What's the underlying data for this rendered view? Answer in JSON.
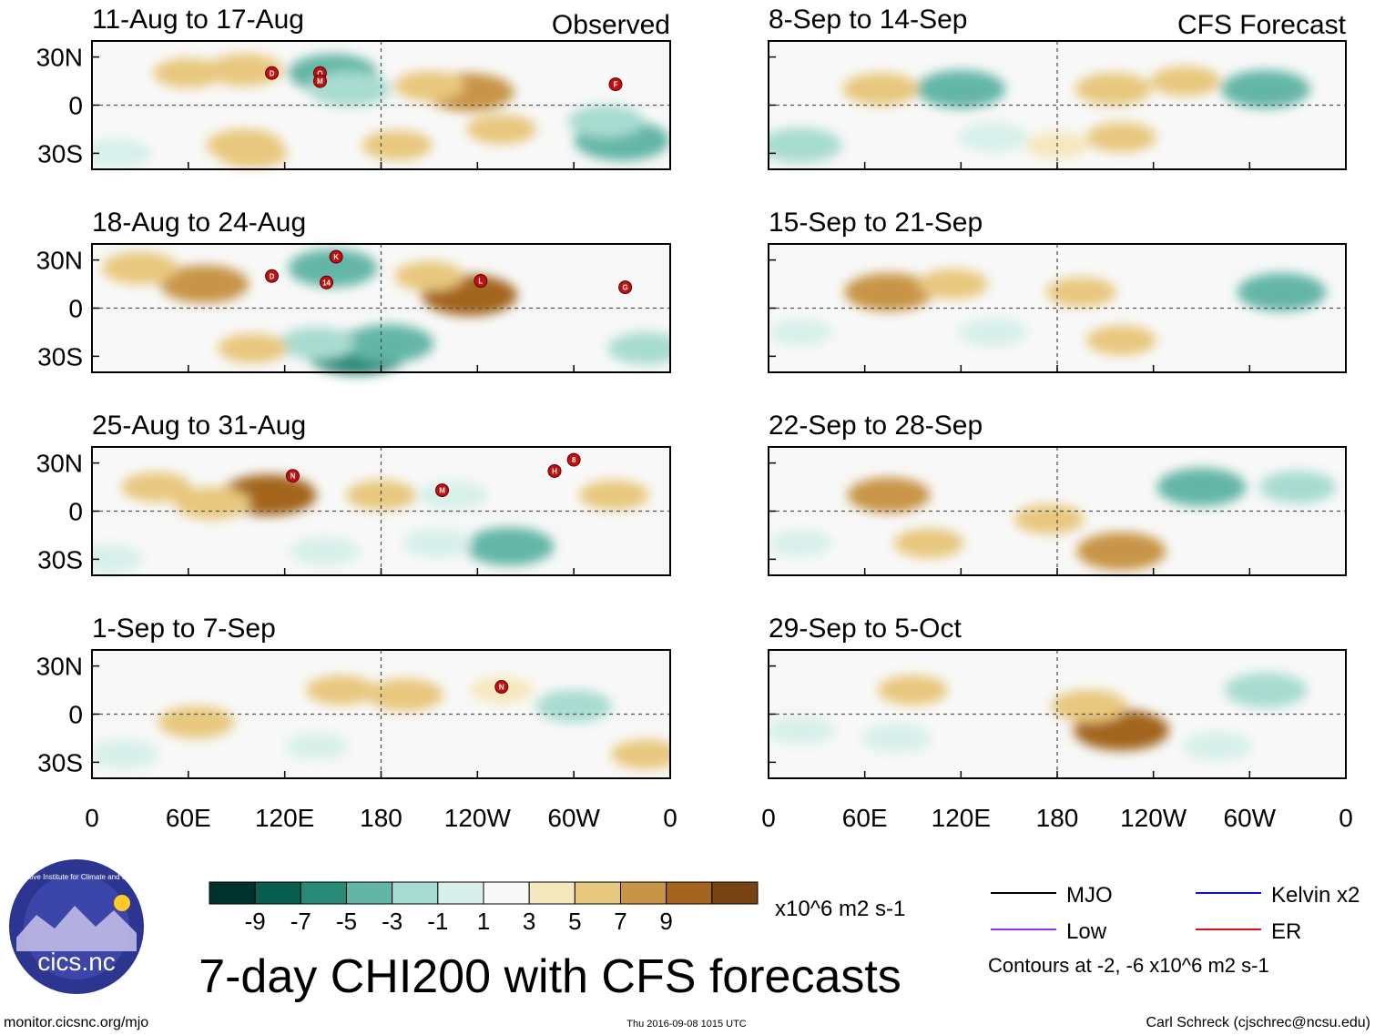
{
  "chart_data": {
    "type": "heatmap",
    "title": "7-day CHI200 with CFS forecasts",
    "observed_label": "Observed",
    "forecast_label": "CFS Forecast",
    "x_ticks": [
      "0",
      "60E",
      "120E",
      "180",
      "120W",
      "60W",
      "0"
    ],
    "x_values": [
      0,
      60,
      120,
      180,
      240,
      300,
      360
    ],
    "y_ticks": [
      "30N",
      "0",
      "30S"
    ],
    "y_values": [
      30,
      0,
      -30
    ],
    "ylim": [
      -40,
      40
    ],
    "xlim": [
      0,
      360
    ],
    "observed_panels": [
      {
        "period": "11-Aug to 17-Aug",
        "anomalies": [
          {
            "lon": 150,
            "lat": 20,
            "value": -6
          },
          {
            "lon": 160,
            "lat": 10,
            "value": -5
          },
          {
            "lon": 95,
            "lat": 22,
            "value": 4
          },
          {
            "lon": 60,
            "lat": 20,
            "value": 3
          },
          {
            "lon": 235,
            "lat": 8,
            "value": 6
          },
          {
            "lon": 210,
            "lat": 12,
            "value": 3
          },
          {
            "lon": 330,
            "lat": -22,
            "value": -7
          },
          {
            "lon": 320,
            "lat": -10,
            "value": -4
          },
          {
            "lon": 95,
            "lat": -25,
            "value": 4
          },
          {
            "lon": 100,
            "lat": -30,
            "value": 3
          },
          {
            "lon": 15,
            "lat": -30,
            "value": -3
          },
          {
            "lon": 190,
            "lat": -25,
            "value": 3
          },
          {
            "lon": 255,
            "lat": -15,
            "value": 3
          }
        ],
        "storms": [
          {
            "lon": 112,
            "lat": 20,
            "label": "D"
          },
          {
            "lon": 142,
            "lat": 20,
            "label": "O"
          },
          {
            "lon": 142,
            "lat": 15,
            "label": "M"
          },
          {
            "lon": 326,
            "lat": 13,
            "label": "F"
          }
        ]
      },
      {
        "period": "18-Aug to 24-Aug",
        "anomalies": [
          {
            "lon": 150,
            "lat": 25,
            "value": -6
          },
          {
            "lon": 165,
            "lat": -28,
            "value": -8
          },
          {
            "lon": 185,
            "lat": -22,
            "value": -6
          },
          {
            "lon": 140,
            "lat": -22,
            "value": -4
          },
          {
            "lon": 70,
            "lat": 15,
            "value": 6
          },
          {
            "lon": 30,
            "lat": 25,
            "value": 4
          },
          {
            "lon": 235,
            "lat": 8,
            "value": 7
          },
          {
            "lon": 210,
            "lat": 20,
            "value": 3
          },
          {
            "lon": 345,
            "lat": -25,
            "value": -4
          },
          {
            "lon": 100,
            "lat": -25,
            "value": 3
          }
        ],
        "storms": [
          {
            "lon": 112,
            "lat": 20,
            "label": "D"
          },
          {
            "lon": 152,
            "lat": 32,
            "label": "K"
          },
          {
            "lon": 146,
            "lat": 16,
            "label": "14"
          },
          {
            "lon": 242,
            "lat": 17,
            "label": "L"
          },
          {
            "lon": 332,
            "lat": 13,
            "label": "G"
          }
        ]
      },
      {
        "period": "25-Aug to 31-Aug",
        "anomalies": [
          {
            "lon": 110,
            "lat": 10,
            "value": 7
          },
          {
            "lon": 75,
            "lat": 5,
            "value": 4
          },
          {
            "lon": 40,
            "lat": 15,
            "value": 3
          },
          {
            "lon": 260,
            "lat": -22,
            "value": -6
          },
          {
            "lon": 225,
            "lat": 10,
            "value": -3
          },
          {
            "lon": 215,
            "lat": -20,
            "value": -3
          },
          {
            "lon": 145,
            "lat": -25,
            "value": -3
          },
          {
            "lon": 10,
            "lat": -30,
            "value": -3
          },
          {
            "lon": 180,
            "lat": 10,
            "value": 3
          },
          {
            "lon": 325,
            "lat": 10,
            "value": 3
          }
        ],
        "storms": [
          {
            "lon": 125,
            "lat": 22,
            "label": "N"
          },
          {
            "lon": 218,
            "lat": 13,
            "label": "M"
          },
          {
            "lon": 288,
            "lat": 25,
            "label": "H"
          },
          {
            "lon": 300,
            "lat": 32,
            "label": "8"
          }
        ]
      },
      {
        "period": "1-Sep to 7-Sep",
        "anomalies": [
          {
            "lon": 195,
            "lat": 12,
            "value": 4
          },
          {
            "lon": 155,
            "lat": 15,
            "value": 3
          },
          {
            "lon": 65,
            "lat": -5,
            "value": 4
          },
          {
            "lon": 300,
            "lat": 5,
            "value": -4
          },
          {
            "lon": 20,
            "lat": -25,
            "value": -3
          },
          {
            "lon": 140,
            "lat": -20,
            "value": -2
          },
          {
            "lon": 345,
            "lat": -25,
            "value": 3
          },
          {
            "lon": 255,
            "lat": 15,
            "value": 2
          }
        ],
        "storms": [
          {
            "lon": 255,
            "lat": 17,
            "label": "N"
          }
        ]
      }
    ],
    "forecast_panels": [
      {
        "period": "8-Sep to 14-Sep",
        "anomalies": [
          {
            "lon": 120,
            "lat": 10,
            "value": -6
          },
          {
            "lon": 140,
            "lat": -20,
            "value": -3
          },
          {
            "lon": 310,
            "lat": 10,
            "value": -6
          },
          {
            "lon": 20,
            "lat": -25,
            "value": -5
          },
          {
            "lon": 70,
            "lat": 10,
            "value": 4
          },
          {
            "lon": 215,
            "lat": 10,
            "value": 4
          },
          {
            "lon": 260,
            "lat": 15,
            "value": 3
          },
          {
            "lon": 220,
            "lat": -20,
            "value": 3
          },
          {
            "lon": 180,
            "lat": -25,
            "value": 2
          }
        ]
      },
      {
        "period": "15-Sep to 21-Sep",
        "anomalies": [
          {
            "lon": 75,
            "lat": 10,
            "value": 6
          },
          {
            "lon": 115,
            "lat": 15,
            "value": 3
          },
          {
            "lon": 320,
            "lat": 10,
            "value": -6
          },
          {
            "lon": 140,
            "lat": -15,
            "value": -3
          },
          {
            "lon": 220,
            "lat": -20,
            "value": 3
          },
          {
            "lon": 195,
            "lat": 10,
            "value": 3
          },
          {
            "lon": 20,
            "lat": -15,
            "value": -2
          }
        ]
      },
      {
        "period": "22-Sep to 28-Sep",
        "anomalies": [
          {
            "lon": 270,
            "lat": 15,
            "value": -6
          },
          {
            "lon": 330,
            "lat": 15,
            "value": -4
          },
          {
            "lon": 220,
            "lat": -25,
            "value": 6
          },
          {
            "lon": 175,
            "lat": -5,
            "value": 3
          },
          {
            "lon": 75,
            "lat": 10,
            "value": 5
          },
          {
            "lon": 20,
            "lat": -20,
            "value": -2
          },
          {
            "lon": 100,
            "lat": -20,
            "value": 3
          }
        ]
      },
      {
        "period": "29-Sep to 5-Oct",
        "anomalies": [
          {
            "lon": 220,
            "lat": -10,
            "value": 7
          },
          {
            "lon": 200,
            "lat": 5,
            "value": 4
          },
          {
            "lon": 90,
            "lat": 15,
            "value": 3
          },
          {
            "lon": 310,
            "lat": 15,
            "value": -5
          },
          {
            "lon": 80,
            "lat": -15,
            "value": -3
          },
          {
            "lon": 20,
            "lat": -10,
            "value": -3
          },
          {
            "lon": 280,
            "lat": -20,
            "value": -3
          }
        ]
      }
    ],
    "colorbar": {
      "ticks": [
        "-9",
        "-7",
        "-5",
        "-3",
        "-1",
        "1",
        "3",
        "5",
        "7",
        "9"
      ],
      "units": "x10^6 m2 s-1",
      "colors": [
        "#00332b",
        "#0a5e50",
        "#2a8a78",
        "#63b6a6",
        "#a8dcd0",
        "#d8f0ea",
        "#f8f8f8",
        "#f6e8be",
        "#e8c77e",
        "#c89447",
        "#a3651f",
        "#774313"
      ]
    },
    "legend": {
      "items": [
        {
          "label": "MJO",
          "color": "#000000"
        },
        {
          "label": "Kelvin x2",
          "color": "#1010d8"
        },
        {
          "label": "Low",
          "color": "#9933ee"
        },
        {
          "label": "ER",
          "color": "#dd1111"
        }
      ],
      "contours_note": "Contours at -2, -6 x10^6 m2 s-1"
    }
  },
  "logo": {
    "name": "cics.nc",
    "arc_text": "Cooperative Institute for Climate and Satellites"
  },
  "footer": {
    "url": "monitor.cicsnc.org/mjo",
    "timestamp": "Thu 2016-09-08 1015 UTC",
    "credit": "Carl Schreck (cjschrec@ncsu.edu)"
  }
}
